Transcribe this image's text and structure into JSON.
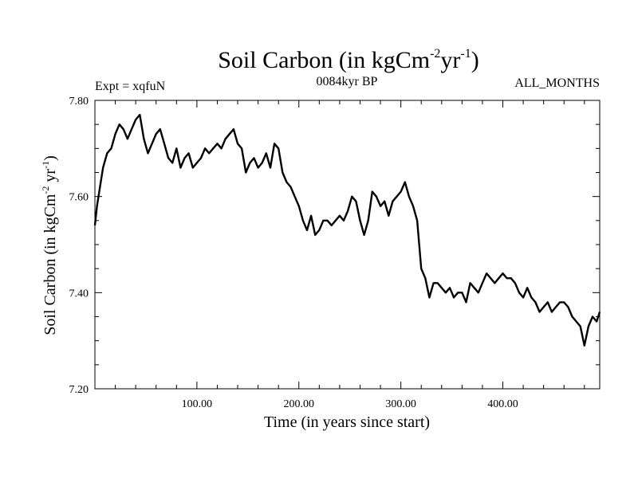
{
  "chart_data": {
    "type": "line",
    "title": "Soil Carbon (in kgCm",
    "title_sup1": "-2",
    "title_mid": "yr",
    "title_sup2": "-1",
    "title_end": ")",
    "subtitle_left": "Expt = xqfuN",
    "subtitle_center": "0084kyr BP",
    "subtitle_right": "ALL_MONTHS",
    "xlabel": "Time (in years since start)",
    "ylabel": "Soil Carbon (in kgCm",
    "ylabel_sup1": "-2",
    "ylabel_mid": " yr",
    "ylabel_sup2": "-1",
    "ylabel_end": ")",
    "xlim": [
      0,
      495
    ],
    "ylim": [
      7.2,
      7.8
    ],
    "x_ticks": [
      100,
      200,
      300,
      400
    ],
    "x_tick_labels": [
      "100.00",
      "200.00",
      "300.00",
      "400.00"
    ],
    "y_ticks": [
      7.2,
      7.4,
      7.6,
      7.8
    ],
    "y_tick_labels": [
      "7.20",
      "7.40",
      "7.60",
      "7.80"
    ],
    "grid": false,
    "series": [
      {
        "color": "#000000",
        "x": [
          0,
          2,
          5,
          8,
          12,
          16,
          20,
          24,
          28,
          32,
          36,
          40,
          44,
          48,
          52,
          56,
          60,
          64,
          68,
          72,
          76,
          80,
          84,
          88,
          92,
          96,
          100,
          104,
          108,
          112,
          116,
          120,
          124,
          128,
          132,
          136,
          140,
          144,
          148,
          152,
          156,
          160,
          164,
          168,
          172,
          176,
          180,
          184,
          188,
          192,
          196,
          200,
          204,
          208,
          212,
          216,
          220,
          224,
          228,
          232,
          236,
          240,
          244,
          248,
          252,
          256,
          260,
          264,
          268,
          272,
          276,
          280,
          284,
          288,
          292,
          296,
          300,
          304,
          308,
          312,
          316,
          320,
          324,
          328,
          332,
          336,
          340,
          344,
          348,
          352,
          356,
          360,
          364,
          368,
          372,
          376,
          380,
          384,
          388,
          392,
          396,
          400,
          404,
          408,
          412,
          416,
          420,
          424,
          428,
          432,
          436,
          440,
          444,
          448,
          452,
          456,
          460,
          464,
          468,
          472,
          476,
          480,
          484,
          488,
          492,
          495
        ],
        "y": [
          7.54,
          7.58,
          7.62,
          7.66,
          7.69,
          7.7,
          7.73,
          7.75,
          7.74,
          7.72,
          7.74,
          7.76,
          7.77,
          7.72,
          7.69,
          7.71,
          7.73,
          7.74,
          7.71,
          7.68,
          7.67,
          7.7,
          7.66,
          7.68,
          7.69,
          7.66,
          7.67,
          7.68,
          7.7,
          7.69,
          7.7,
          7.71,
          7.7,
          7.72,
          7.73,
          7.74,
          7.71,
          7.7,
          7.65,
          7.67,
          7.68,
          7.66,
          7.67,
          7.69,
          7.66,
          7.71,
          7.7,
          7.65,
          7.63,
          7.62,
          7.6,
          7.58,
          7.55,
          7.53,
          7.56,
          7.52,
          7.53,
          7.55,
          7.55,
          7.54,
          7.55,
          7.56,
          7.55,
          7.57,
          7.6,
          7.59,
          7.55,
          7.52,
          7.55,
          7.61,
          7.6,
          7.58,
          7.59,
          7.56,
          7.59,
          7.6,
          7.61,
          7.63,
          7.6,
          7.58,
          7.55,
          7.45,
          7.43,
          7.39,
          7.42,
          7.42,
          7.41,
          7.4,
          7.41,
          7.39,
          7.4,
          7.4,
          7.38,
          7.42,
          7.41,
          7.4,
          7.42,
          7.44,
          7.43,
          7.42,
          7.43,
          7.44,
          7.43,
          7.43,
          7.42,
          7.4,
          7.39,
          7.41,
          7.39,
          7.38,
          7.36,
          7.37,
          7.38,
          7.36,
          7.37,
          7.38,
          7.38,
          7.37,
          7.35,
          7.34,
          7.33,
          7.29,
          7.33,
          7.35,
          7.34,
          7.36
        ]
      }
    ]
  }
}
